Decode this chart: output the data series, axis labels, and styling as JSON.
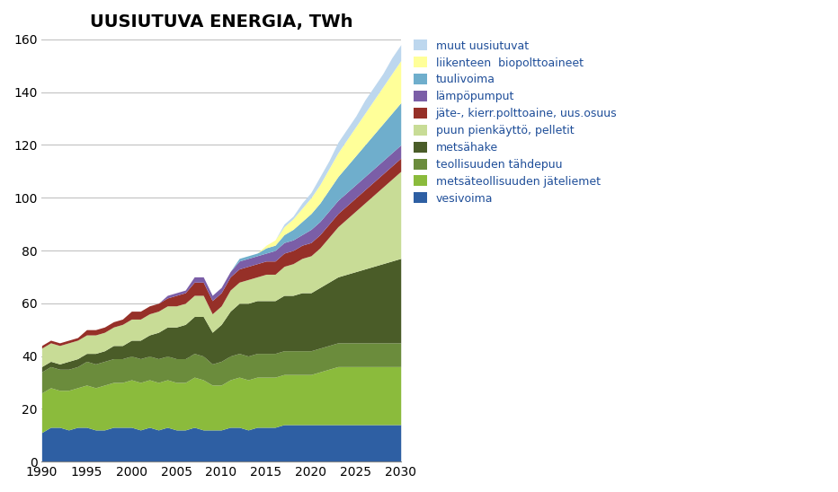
{
  "title": "UUSIUTUVA ENERGIA, TWh",
  "years": [
    1990,
    1991,
    1992,
    1993,
    1994,
    1995,
    1996,
    1997,
    1998,
    1999,
    2000,
    2001,
    2002,
    2003,
    2004,
    2005,
    2006,
    2007,
    2008,
    2009,
    2010,
    2011,
    2012,
    2013,
    2014,
    2015,
    2016,
    2017,
    2018,
    2019,
    2020,
    2021,
    2022,
    2023,
    2024,
    2025,
    2026,
    2027,
    2028,
    2029,
    2030
  ],
  "series": {
    "vesivoima": [
      11,
      13,
      13,
      12,
      13,
      13,
      12,
      12,
      13,
      13,
      13,
      12,
      13,
      12,
      13,
      12,
      12,
      13,
      12,
      12,
      12,
      13,
      13,
      12,
      13,
      13,
      13,
      14,
      14,
      14,
      14,
      14,
      14,
      14,
      14,
      14,
      14,
      14,
      14,
      14,
      14
    ],
    "metsateollisuuden_jateliemet": [
      15,
      15,
      14,
      15,
      15,
      16,
      16,
      17,
      17,
      17,
      18,
      18,
      18,
      18,
      18,
      18,
      18,
      19,
      19,
      17,
      17,
      18,
      19,
      19,
      19,
      19,
      19,
      19,
      19,
      19,
      19,
      20,
      21,
      22,
      22,
      22,
      22,
      22,
      22,
      22,
      22
    ],
    "teollisuuden_tahdepuu": [
      8,
      8,
      8,
      8,
      8,
      9,
      9,
      9,
      9,
      9,
      9,
      9,
      9,
      9,
      9,
      9,
      9,
      9,
      9,
      8,
      9,
      9,
      9,
      9,
      9,
      9,
      9,
      9,
      9,
      9,
      9,
      9,
      9,
      9,
      9,
      9,
      9,
      9,
      9,
      9,
      9
    ],
    "metsahake": [
      2,
      2,
      2,
      3,
      3,
      3,
      4,
      4,
      5,
      5,
      6,
      7,
      8,
      10,
      11,
      12,
      13,
      14,
      15,
      12,
      14,
      17,
      19,
      20,
      20,
      20,
      20,
      21,
      21,
      22,
      22,
      23,
      24,
      25,
      26,
      27,
      28,
      29,
      30,
      31,
      32
    ],
    "puun_pienkaytto_pelletit": [
      7,
      7,
      7,
      7,
      7,
      7,
      7,
      7,
      7,
      8,
      8,
      8,
      8,
      8,
      8,
      8,
      8,
      8,
      8,
      7,
      7,
      8,
      8,
      9,
      9,
      10,
      10,
      11,
      12,
      13,
      14,
      15,
      17,
      19,
      21,
      23,
      25,
      27,
      29,
      31,
      33
    ],
    "jate_kierr_polttoaine": [
      1,
      1,
      1,
      1,
      1,
      2,
      2,
      2,
      2,
      2,
      3,
      3,
      3,
      3,
      3,
      4,
      4,
      5,
      5,
      5,
      5,
      5,
      5,
      5,
      5,
      5,
      5,
      5,
      5,
      5,
      5,
      5,
      5,
      5,
      5,
      5,
      5,
      5,
      5,
      5,
      5
    ],
    "lampopumput": [
      0,
      0,
      0,
      0,
      0,
      0,
      0,
      0,
      0,
      0,
      0,
      0,
      0,
      0,
      1,
      1,
      1,
      2,
      2,
      2,
      2,
      2,
      3,
      3,
      3,
      3,
      4,
      4,
      4,
      4,
      5,
      5,
      5,
      5,
      5,
      5,
      5,
      5,
      5,
      5,
      5
    ],
    "tuulivoima": [
      0,
      0,
      0,
      0,
      0,
      0,
      0,
      0,
      0,
      0,
      0,
      0,
      0,
      0,
      0,
      0,
      0,
      0,
      0,
      0,
      0,
      0,
      1,
      1,
      1,
      2,
      2,
      3,
      4,
      5,
      6,
      7,
      8,
      9,
      10,
      11,
      12,
      13,
      14,
      15,
      16
    ],
    "liikenteen_biopolttoaineet": [
      0,
      0,
      0,
      0,
      0,
      0,
      0,
      0,
      0,
      0,
      0,
      0,
      0,
      0,
      0,
      0,
      0,
      0,
      0,
      0,
      0,
      0,
      0,
      0,
      0,
      1,
      2,
      3,
      4,
      5,
      6,
      7,
      8,
      9,
      10,
      11,
      12,
      13,
      14,
      15,
      16
    ],
    "muut_uusiutuvat": [
      0,
      0,
      0,
      0,
      0,
      0,
      0,
      0,
      0,
      0,
      0,
      0,
      0,
      0,
      0,
      0,
      0,
      0,
      0,
      0,
      0,
      0,
      0,
      0,
      0,
      0,
      0,
      1,
      1,
      2,
      2,
      3,
      3,
      4,
      4,
      4,
      5,
      5,
      5,
      6,
      6
    ]
  },
  "colors": {
    "vesivoima": "#2E5FA3",
    "metsateollisuuden_jateliemet": "#8BBB3C",
    "teollisuuden_tahdepuu": "#6B8C3C",
    "metsahake": "#4A5C28",
    "puun_pienkaytto_pelletit": "#C8DC96",
    "jate_kierr_polttoaine": "#963028",
    "lampopumput": "#7B5EA7",
    "tuulivoima": "#6FAECC",
    "liikenteen_biopolttoaineet": "#FFFF99",
    "muut_uusiutuvat": "#BDD7EE"
  },
  "labels": {
    "vesivoima": "vesivoima",
    "metsateollisuuden_jateliemet": "metsäteollisuuden jäteliemet",
    "teollisuuden_tahdepuu": "teollisuuden tähdepuu",
    "metsahake": "metsähake",
    "puun_pienkaytto_pelletit": "puun pienkäyttö, pelletit",
    "jate_kierr_polttoaine": "jäte-, kierr.polttoaine, uus.osuus",
    "lampopumput": "lämpöpumput",
    "tuulivoima": "tuulivoima",
    "liikenteen_biopolttoaineet": "liikenteen  biopolttoaineet",
    "muut_uusiutuvat": "muut uusiutuvat"
  },
  "ylim": [
    0,
    160
  ],
  "yticks": [
    0,
    20,
    40,
    60,
    80,
    100,
    120,
    140,
    160
  ],
  "xticks": [
    1990,
    1995,
    2000,
    2005,
    2010,
    2015,
    2020,
    2025,
    2030
  ]
}
